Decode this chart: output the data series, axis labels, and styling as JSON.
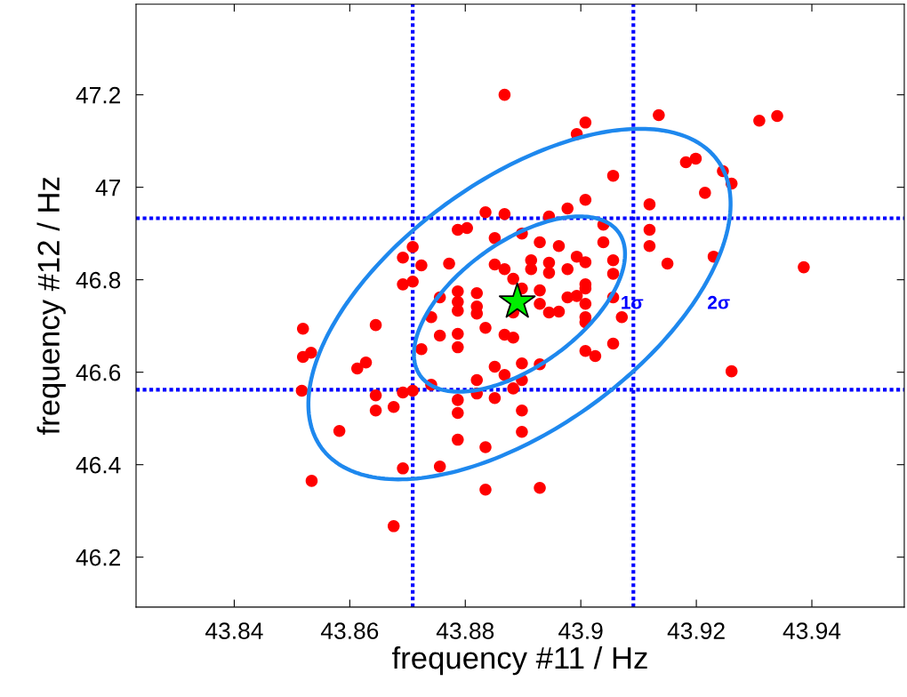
{
  "chart_data": {
    "type": "scatter",
    "xlabel": "frequency #11 / Hz",
    "ylabel": "frequency #12 / Hz",
    "xlim": [
      43.823,
      43.956
    ],
    "ylim": [
      46.092,
      47.396
    ],
    "xticks": [
      43.84,
      43.86,
      43.88,
      43.9,
      43.92,
      43.94
    ],
    "yticks": [
      46.2,
      46.4,
      46.6,
      46.8,
      47,
      47.2
    ],
    "grid": false,
    "ref_lines": [
      {
        "axis": "x",
        "value": 43.8709,
        "color": "#0000ff",
        "line_style": "dotted"
      },
      {
        "axis": "x",
        "value": 43.9091,
        "color": "#0000ff",
        "line_style": "dotted"
      },
      {
        "axis": "y",
        "value": 46.933,
        "color": "#0000ff",
        "line_style": "dotted"
      },
      {
        "axis": "y",
        "value": 46.562,
        "color": "#0000ff",
        "line_style": "dotted"
      }
    ],
    "annotations": [
      "1σ",
      "2σ"
    ],
    "series": [
      {
        "color": "#ff0000",
        "marker": "circle",
        "x": [
          43.8868,
          43.8835,
          43.8868,
          43.8945,
          43.8977,
          43.8787,
          43.8803,
          43.8851,
          43.8898,
          43.8929,
          43.8962,
          43.8709,
          43.8692,
          43.8724,
          43.8772,
          43.8851,
          43.8868,
          43.8914,
          43.8914,
          43.8945,
          43.8945,
          43.8977,
          43.8883,
          43.8709,
          43.8692,
          43.9135,
          43.9309,
          43.934,
          43.9008,
          43.8993,
          43.9056,
          43.9182,
          43.9199,
          43.9246,
          43.9261,
          43.9215,
          43.9008,
          43.9119,
          43.9039,
          43.9119,
          43.9119,
          43.9039,
          43.8993,
          43.9008,
          43.9056,
          43.923,
          43.915,
          43.9386,
          43.9056,
          43.9008,
          43.8756,
          43.8787,
          43.8787,
          43.8787,
          43.882,
          43.882,
          43.882,
          43.8898,
          43.8929,
          43.8929,
          43.8977,
          43.8945,
          43.8962,
          43.8883,
          43.8741,
          43.8519,
          43.8645,
          43.8835,
          43.8756,
          43.8787,
          43.8787,
          43.8868,
          43.8883,
          43.8724,
          43.8533,
          43.8519,
          43.8628,
          43.8613,
          43.8851,
          43.8868,
          43.8898,
          43.8929,
          43.882,
          43.8898,
          43.8883,
          43.8741,
          43.8517,
          43.8692,
          43.8709,
          43.8645,
          43.8645,
          43.8787,
          43.882,
          43.8851,
          43.8676,
          43.8787,
          43.8898,
          43.8993,
          43.9008,
          43.9008,
          43.9056,
          43.9008,
          43.9008,
          43.9071,
          43.9056,
          43.9008,
          43.9025,
          43.9261,
          43.8582,
          43.8787,
          43.8835,
          43.8898,
          43.8534,
          43.8692,
          43.8756,
          43.8835,
          43.8929,
          43.8676
        ],
        "values": [
          47.2,
          46.946,
          46.942,
          46.937,
          46.954,
          46.908,
          46.912,
          46.89,
          46.9,
          46.881,
          46.873,
          46.871,
          46.848,
          46.831,
          46.835,
          46.833,
          46.823,
          46.842,
          46.823,
          46.837,
          46.815,
          46.823,
          46.802,
          46.796,
          46.79,
          47.156,
          47.144,
          47.154,
          47.14,
          47.115,
          47.025,
          47.054,
          47.062,
          47.035,
          47.008,
          46.988,
          46.973,
          46.963,
          46.919,
          46.908,
          46.873,
          46.881,
          46.85,
          46.838,
          46.842,
          46.85,
          46.835,
          46.827,
          46.813,
          46.79,
          46.762,
          46.775,
          46.752,
          46.733,
          46.771,
          46.742,
          46.727,
          46.781,
          46.777,
          46.748,
          46.762,
          46.729,
          46.731,
          46.729,
          46.719,
          46.694,
          46.702,
          46.696,
          46.679,
          46.683,
          46.654,
          46.681,
          46.675,
          46.65,
          46.642,
          46.633,
          46.621,
          46.608,
          46.612,
          46.594,
          46.619,
          46.617,
          46.583,
          46.583,
          46.565,
          46.573,
          46.56,
          46.556,
          46.56,
          46.55,
          46.517,
          46.54,
          46.554,
          46.544,
          46.525,
          46.512,
          46.517,
          46.765,
          46.781,
          46.748,
          46.762,
          46.719,
          46.708,
          46.719,
          46.662,
          46.646,
          46.635,
          46.602,
          46.473,
          46.454,
          46.438,
          46.471,
          46.365,
          46.392,
          46.396,
          46.346,
          46.35,
          46.267
        ]
      },
      {
        "type": "scatter",
        "color": "#00ee00",
        "marker": "star",
        "x": [
          43.889
        ],
        "values": [
          46.752
        ]
      }
    ]
  }
}
